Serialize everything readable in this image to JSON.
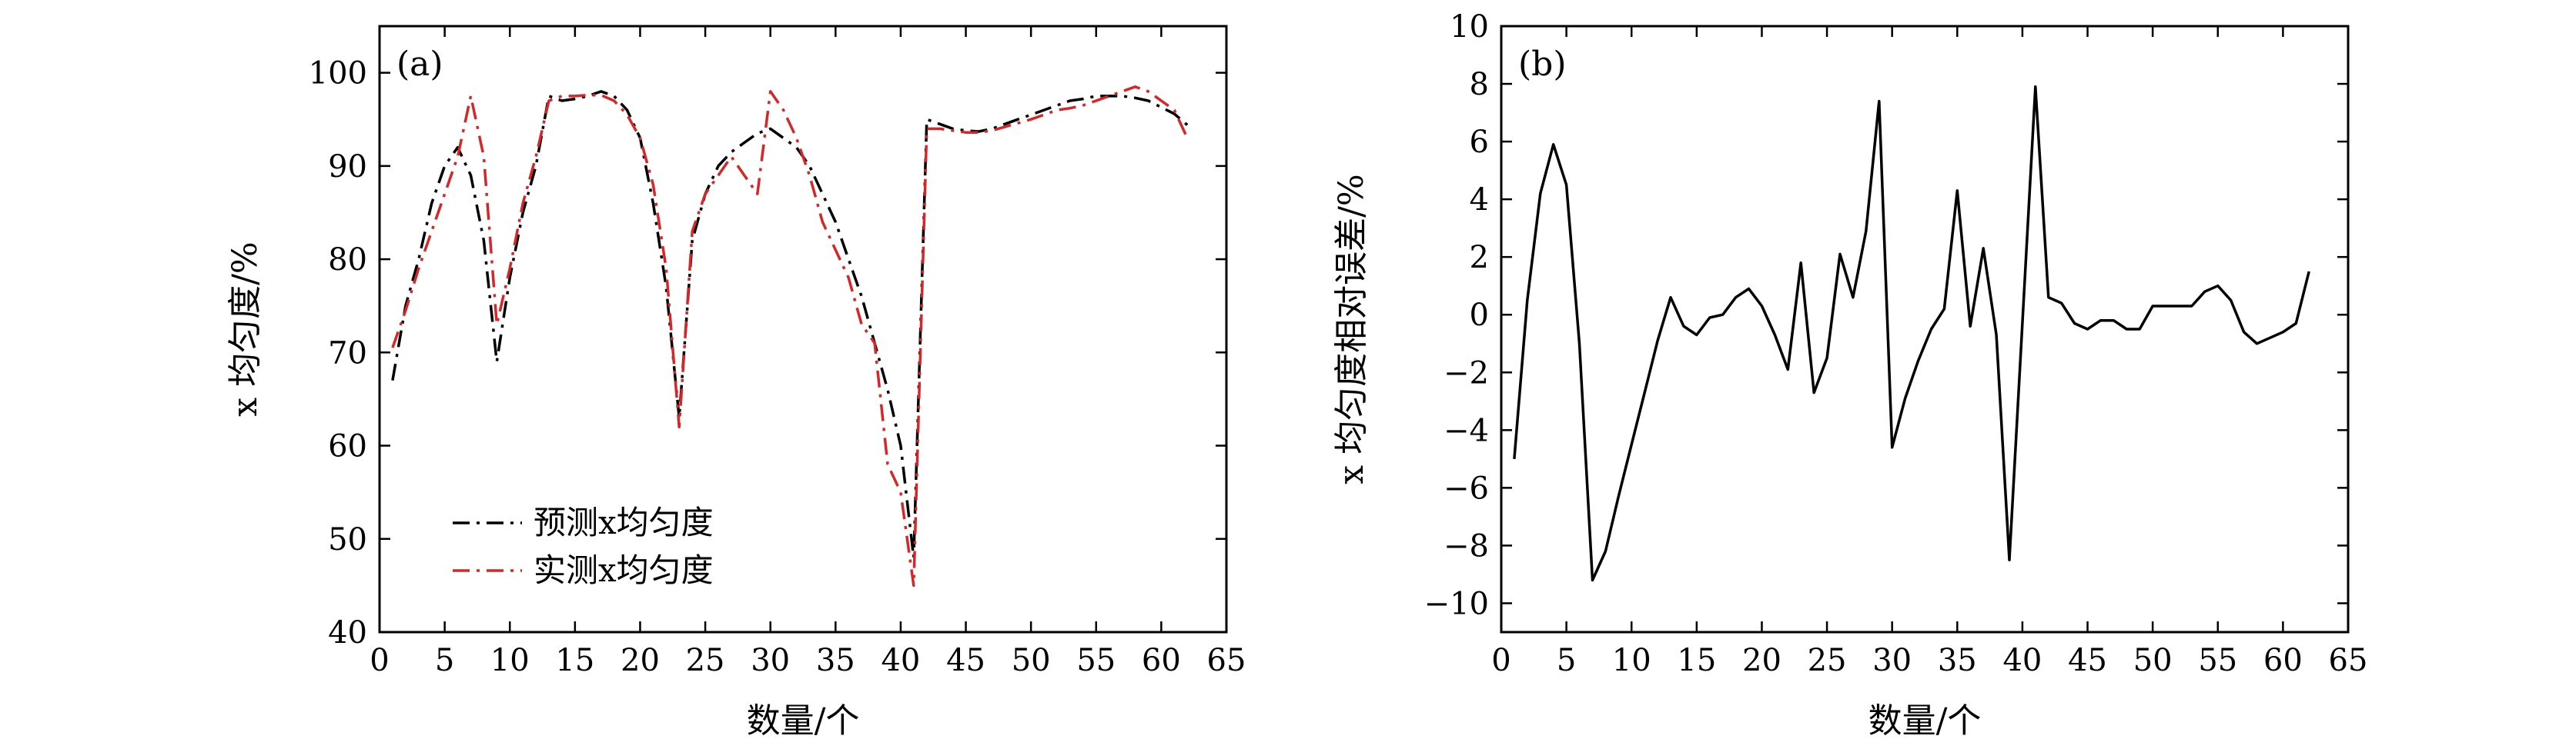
{
  "chart_data": [
    {
      "type": "line",
      "panel_label": "(a)",
      "xlabel": "数量/个",
      "ylabel": "x 均匀度/%",
      "xlim": [
        0,
        65
      ],
      "ylim": [
        40,
        105
      ],
      "xticks": [
        0,
        5,
        10,
        15,
        20,
        25,
        30,
        35,
        40,
        45,
        50,
        55,
        60,
        65
      ],
      "yticks": [
        40,
        50,
        60,
        70,
        80,
        90,
        100
      ],
      "legend_position": "bottom-left",
      "series": [
        {
          "name": "预测x均匀度",
          "color": "#000000",
          "dash": "dashdot",
          "x": [
            1,
            2,
            3,
            4,
            5,
            6,
            7,
            8,
            9,
            10,
            11,
            12,
            13,
            14,
            15,
            16,
            17,
            18,
            19,
            20,
            21,
            22,
            23,
            24,
            25,
            26,
            27,
            28,
            29,
            30,
            31,
            32,
            33,
            34,
            35,
            36,
            37,
            38,
            39,
            40,
            41,
            42,
            43,
            44,
            45,
            46,
            47,
            48,
            49,
            50,
            51,
            52,
            53,
            54,
            55,
            56,
            57,
            58,
            59,
            60,
            61,
            62
          ],
          "y": [
            67,
            75,
            80,
            86,
            90,
            92,
            89,
            82,
            69,
            78,
            85,
            90,
            97.5,
            97,
            97.2,
            97.5,
            98,
            97.5,
            96,
            93,
            86,
            77,
            63,
            82,
            87,
            90,
            91.5,
            92.5,
            93.5,
            94,
            93,
            92,
            90,
            87,
            84,
            80,
            76,
            71,
            66,
            60,
            48,
            95,
            94.5,
            94,
            93.8,
            93.7,
            94,
            94.5,
            95,
            95.5,
            96,
            96.5,
            97,
            97.2,
            97.5,
            97.5,
            97.5,
            97.3,
            97,
            96.3,
            95.6,
            94.4
          ]
        },
        {
          "name": "实测x均匀度",
          "color": "#d62728",
          "dash": "dashdot",
          "x": [
            1,
            2,
            3,
            4,
            5,
            6,
            7,
            8,
            9,
            10,
            11,
            12,
            13,
            14,
            15,
            16,
            17,
            18,
            19,
            20,
            21,
            22,
            23,
            24,
            25,
            26,
            27,
            28,
            29,
            30,
            31,
            32,
            33,
            34,
            35,
            36,
            37,
            38,
            39,
            40,
            41,
            42,
            43,
            44,
            45,
            46,
            47,
            48,
            49,
            50,
            51,
            52,
            53,
            54,
            55,
            56,
            57,
            58,
            59,
            60,
            61,
            62
          ],
          "y": [
            70.5,
            74.5,
            79,
            83,
            87,
            91,
            97.5,
            91,
            73,
            79,
            86,
            91,
            97,
            97.5,
            97.5,
            97.6,
            97.6,
            97,
            95.5,
            93,
            88,
            79,
            62,
            83,
            87,
            89,
            91,
            89,
            87,
            98,
            96,
            93,
            89,
            84,
            81,
            78,
            73,
            71,
            58,
            55,
            45,
            94,
            94,
            93.8,
            93.6,
            93.6,
            93.8,
            94.2,
            94.6,
            95,
            95.5,
            96,
            96.2,
            96.5,
            97,
            97.5,
            98,
            98.5,
            98,
            97,
            96,
            93
          ]
        }
      ]
    },
    {
      "type": "line",
      "panel_label": "(b)",
      "xlabel": "数量/个",
      "ylabel": "x 均匀度相对误差/%",
      "xlim": [
        0,
        65
      ],
      "ylim": [
        -11,
        10
      ],
      "xticks": [
        0,
        5,
        10,
        15,
        20,
        25,
        30,
        35,
        40,
        45,
        50,
        55,
        60,
        65
      ],
      "yticks": [
        -10,
        -8,
        -6,
        -4,
        -2,
        0,
        2,
        4,
        6,
        8,
        10
      ],
      "series": [
        {
          "name": "x 均匀度相对误差",
          "color": "#000000",
          "dash": "solid",
          "x": [
            1,
            2,
            3,
            4,
            5,
            6,
            7,
            8,
            9,
            10,
            11,
            12,
            13,
            14,
            15,
            16,
            17,
            18,
            19,
            20,
            21,
            22,
            23,
            24,
            25,
            26,
            27,
            28,
            29,
            30,
            31,
            32,
            33,
            34,
            35,
            36,
            37,
            38,
            39,
            40,
            41,
            42,
            43,
            44,
            45,
            46,
            47,
            48,
            49,
            50,
            51,
            52,
            53,
            54,
            55,
            56,
            57,
            58,
            59,
            60,
            61,
            62
          ],
          "y": [
            -5,
            0.5,
            4.2,
            5.9,
            4.5,
            -1,
            -9.2,
            -8.2,
            -6.3,
            -4.5,
            -2.7,
            -0.9,
            0.6,
            -0.4,
            -0.7,
            -0.1,
            0,
            0.6,
            0.9,
            0.3,
            -0.7,
            -1.9,
            1.8,
            -2.7,
            -1.5,
            2.1,
            0.6,
            2.9,
            7.4,
            -4.6,
            -2.9,
            -1.6,
            -0.5,
            0.2,
            4.3,
            -0.4,
            2.3,
            -0.7,
            -8.5,
            -0.3,
            7.9,
            0.6,
            0.4,
            -0.3,
            -0.5,
            -0.2,
            -0.2,
            -0.5,
            -0.5,
            0.3,
            0.3,
            0.3,
            0.3,
            0.8,
            1,
            0.5,
            -0.6,
            -1,
            -0.8,
            -0.6,
            -0.3,
            1.5
          ]
        }
      ]
    }
  ]
}
